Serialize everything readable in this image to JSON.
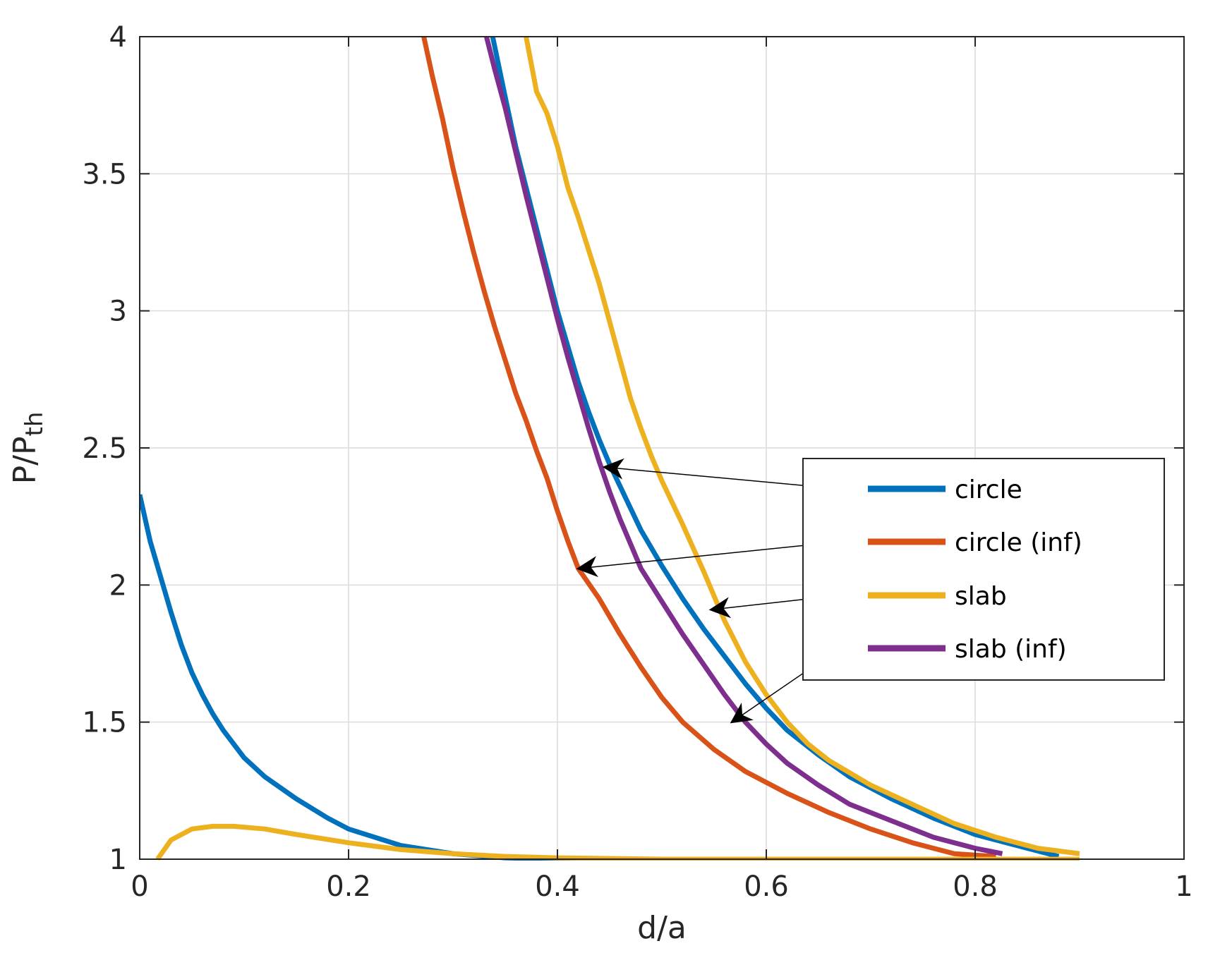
{
  "chart_data": {
    "type": "line",
    "title": "",
    "xlabel": "d/a",
    "ylabel": "P/P",
    "ylabel_subscript": "th",
    "xlim": [
      0,
      1
    ],
    "ylim": [
      1,
      4
    ],
    "xticks": [
      0,
      0.2,
      0.4,
      0.6,
      0.8,
      1
    ],
    "yticks": [
      1,
      1.5,
      2,
      2.5,
      3,
      3.5,
      4
    ],
    "xtick_labels": [
      "0",
      "0.2",
      "0.4",
      "0.6",
      "0.8",
      "1"
    ],
    "ytick_labels": [
      "1",
      "1.5",
      "2",
      "2.5",
      "3",
      "3.5",
      "4"
    ],
    "grid": true,
    "legend_position": "right",
    "series": [
      {
        "name": "circle",
        "color": "#0072BD",
        "segments": [
          [
            [
              0.0,
              2.33
            ],
            [
              0.01,
              2.16
            ],
            [
              0.02,
              2.03
            ],
            [
              0.03,
              1.9
            ],
            [
              0.04,
              1.78
            ],
            [
              0.05,
              1.68
            ],
            [
              0.06,
              1.6
            ],
            [
              0.07,
              1.53
            ],
            [
              0.08,
              1.47
            ],
            [
              0.1,
              1.37
            ],
            [
              0.12,
              1.3
            ],
            [
              0.15,
              1.22
            ],
            [
              0.18,
              1.15
            ],
            [
              0.2,
              1.11
            ],
            [
              0.25,
              1.05
            ],
            [
              0.3,
              1.02
            ],
            [
              0.35,
              1.005
            ],
            [
              0.4,
              1.0
            ],
            [
              0.5,
              1.0
            ],
            [
              0.6,
              1.0
            ],
            [
              0.7,
              1.0
            ],
            [
              0.8,
              1.0
            ],
            [
              0.88,
              1.0
            ]
          ],
          [
            [
              0.338,
              4.0
            ],
            [
              0.35,
              3.78
            ],
            [
              0.36,
              3.6
            ],
            [
              0.37,
              3.45
            ],
            [
              0.38,
              3.3
            ],
            [
              0.39,
              3.15
            ],
            [
              0.4,
              3.0
            ],
            [
              0.41,
              2.87
            ],
            [
              0.42,
              2.74
            ],
            [
              0.43,
              2.63
            ],
            [
              0.44,
              2.53
            ],
            [
              0.45,
              2.44
            ],
            [
              0.46,
              2.36
            ],
            [
              0.47,
              2.28
            ],
            [
              0.48,
              2.2
            ],
            [
              0.5,
              2.07
            ],
            [
              0.52,
              1.95
            ],
            [
              0.54,
              1.84
            ],
            [
              0.56,
              1.74
            ],
            [
              0.58,
              1.64
            ],
            [
              0.6,
              1.55
            ],
            [
              0.62,
              1.47
            ],
            [
              0.65,
              1.38
            ],
            [
              0.68,
              1.3
            ],
            [
              0.72,
              1.22
            ],
            [
              0.76,
              1.15
            ],
            [
              0.8,
              1.09
            ],
            [
              0.84,
              1.05
            ],
            [
              0.88,
              1.01
            ]
          ]
        ]
      },
      {
        "name": "circle (inf)",
        "color": "#D95319",
        "segments": [
          [
            [
              0.272,
              4.0
            ],
            [
              0.28,
              3.86
            ],
            [
              0.29,
              3.7
            ],
            [
              0.3,
              3.52
            ],
            [
              0.31,
              3.36
            ],
            [
              0.32,
              3.21
            ],
            [
              0.33,
              3.07
            ],
            [
              0.34,
              2.94
            ],
            [
              0.35,
              2.82
            ],
            [
              0.36,
              2.7
            ],
            [
              0.37,
              2.6
            ],
            [
              0.38,
              2.49
            ],
            [
              0.39,
              2.39
            ],
            [
              0.4,
              2.27
            ],
            [
              0.41,
              2.16
            ],
            [
              0.42,
              2.06
            ],
            [
              0.44,
              1.95
            ],
            [
              0.46,
              1.82
            ],
            [
              0.48,
              1.7
            ],
            [
              0.5,
              1.59
            ],
            [
              0.52,
              1.5
            ],
            [
              0.55,
              1.4
            ],
            [
              0.58,
              1.32
            ],
            [
              0.62,
              1.24
            ],
            [
              0.66,
              1.17
            ],
            [
              0.7,
              1.11
            ],
            [
              0.74,
              1.06
            ],
            [
              0.78,
              1.02
            ],
            [
              0.82,
              1.01
            ]
          ]
        ]
      },
      {
        "name": "slab",
        "color": "#EDB120",
        "segments": [
          [
            [
              0.017,
              1.0
            ],
            [
              0.03,
              1.07
            ],
            [
              0.05,
              1.11
            ],
            [
              0.07,
              1.12
            ],
            [
              0.09,
              1.12
            ],
            [
              0.12,
              1.11
            ],
            [
              0.15,
              1.09
            ],
            [
              0.2,
              1.06
            ],
            [
              0.25,
              1.035
            ],
            [
              0.3,
              1.02
            ],
            [
              0.35,
              1.01
            ],
            [
              0.4,
              1.005
            ],
            [
              0.5,
              1.0
            ],
            [
              0.6,
              1.0
            ],
            [
              0.7,
              1.0
            ],
            [
              0.8,
              1.0
            ],
            [
              0.9,
              1.0
            ]
          ],
          [
            [
              0.37,
              4.0
            ],
            [
              0.38,
              3.8
            ],
            [
              0.39,
              3.72
            ],
            [
              0.4,
              3.6
            ],
            [
              0.41,
              3.45
            ],
            [
              0.42,
              3.34
            ],
            [
              0.43,
              3.22
            ],
            [
              0.44,
              3.1
            ],
            [
              0.45,
              2.96
            ],
            [
              0.46,
              2.82
            ],
            [
              0.47,
              2.68
            ],
            [
              0.48,
              2.57
            ],
            [
              0.49,
              2.47
            ],
            [
              0.5,
              2.38
            ],
            [
              0.52,
              2.22
            ],
            [
              0.54,
              2.05
            ],
            [
              0.56,
              1.87
            ],
            [
              0.58,
              1.72
            ],
            [
              0.6,
              1.6
            ],
            [
              0.62,
              1.5
            ],
            [
              0.64,
              1.42
            ],
            [
              0.66,
              1.36
            ],
            [
              0.7,
              1.27
            ],
            [
              0.74,
              1.2
            ],
            [
              0.78,
              1.13
            ],
            [
              0.82,
              1.08
            ],
            [
              0.86,
              1.04
            ],
            [
              0.9,
              1.02
            ]
          ]
        ]
      },
      {
        "name": "slab (inf)",
        "color": "#7E2F8E",
        "segments": [
          [
            [
              0.332,
              4.0
            ],
            [
              0.34,
              3.88
            ],
            [
              0.35,
              3.74
            ],
            [
              0.36,
              3.58
            ],
            [
              0.37,
              3.42
            ],
            [
              0.38,
              3.27
            ],
            [
              0.39,
              3.12
            ],
            [
              0.4,
              2.97
            ],
            [
              0.41,
              2.83
            ],
            [
              0.42,
              2.7
            ],
            [
              0.43,
              2.57
            ],
            [
              0.44,
              2.45
            ],
            [
              0.45,
              2.34
            ],
            [
              0.46,
              2.24
            ],
            [
              0.47,
              2.15
            ],
            [
              0.48,
              2.06
            ],
            [
              0.5,
              1.94
            ],
            [
              0.52,
              1.82
            ],
            [
              0.54,
              1.71
            ],
            [
              0.56,
              1.6
            ],
            [
              0.58,
              1.5
            ],
            [
              0.6,
              1.42
            ],
            [
              0.62,
              1.35
            ],
            [
              0.65,
              1.27
            ],
            [
              0.68,
              1.2
            ],
            [
              0.72,
              1.14
            ],
            [
              0.76,
              1.08
            ],
            [
              0.8,
              1.04
            ],
            [
              0.826,
              1.02
            ]
          ]
        ]
      }
    ],
    "annotations": [
      {
        "type": "arrow",
        "from_series": "circle",
        "to": [
          0.445,
          2.43
        ]
      },
      {
        "type": "arrow",
        "from_series": "circle (inf)",
        "to": [
          0.42,
          2.06
        ]
      },
      {
        "type": "arrow",
        "from_series": "slab",
        "to": [
          0.547,
          1.91
        ]
      },
      {
        "type": "arrow",
        "from_series": "slab (inf)",
        "to": [
          0.567,
          1.5
        ]
      }
    ]
  }
}
